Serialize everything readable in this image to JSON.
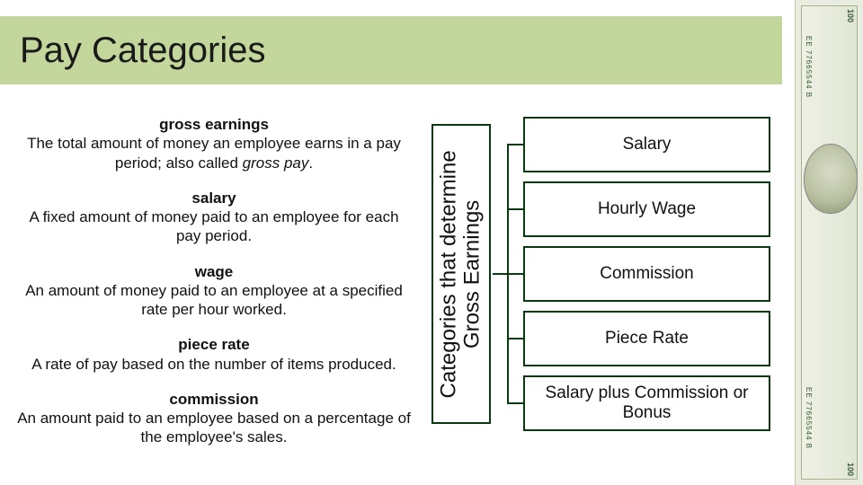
{
  "colors": {
    "title_bg": "#c3d69b",
    "title_text": "#1a1a1a",
    "def_text": "#111111",
    "box_border": "#0a3810",
    "box_bg": "#ffffff",
    "box_text": "#111111",
    "connector": "#0a3810"
  },
  "title": "Pay Categories",
  "definitions": [
    {
      "term": "gross earnings",
      "body_pre": "The total amount of money an employee earns in a pay period; also called ",
      "body_italic": "gross pay",
      "body_post": "."
    },
    {
      "term": "salary",
      "body_pre": "A fixed amount of money paid to an employee for each pay period.",
      "body_italic": "",
      "body_post": ""
    },
    {
      "term": "wage",
      "body_pre": "An amount of money paid to an employee at a specified rate per hour worked.",
      "body_italic": "",
      "body_post": ""
    },
    {
      "term": "piece rate",
      "body_pre": "A rate of pay based on the number of items produced.",
      "body_italic": "",
      "body_post": ""
    },
    {
      "term": "commission",
      "body_pre": "An amount paid to an employee based on a percentage of the employee's sales.",
      "body_italic": "",
      "body_post": ""
    }
  ],
  "vertical_label_line1": "Categories that determine",
  "vertical_label_line2": "Gross Earnings",
  "categories": [
    "Salary",
    "Hourly Wage",
    "Commission",
    "Piece Rate",
    "Salary plus Commission or Bonus"
  ],
  "bill": {
    "serial_top": "EE 77665544 B",
    "serial_bottom": "EE 77665544 B",
    "corner": "100"
  },
  "layout": {
    "title_fontsize": 40,
    "def_fontsize": 17,
    "vertical_fontsize": 24,
    "category_fontsize": 19,
    "category_box_height": 62,
    "category_gap": 10
  }
}
